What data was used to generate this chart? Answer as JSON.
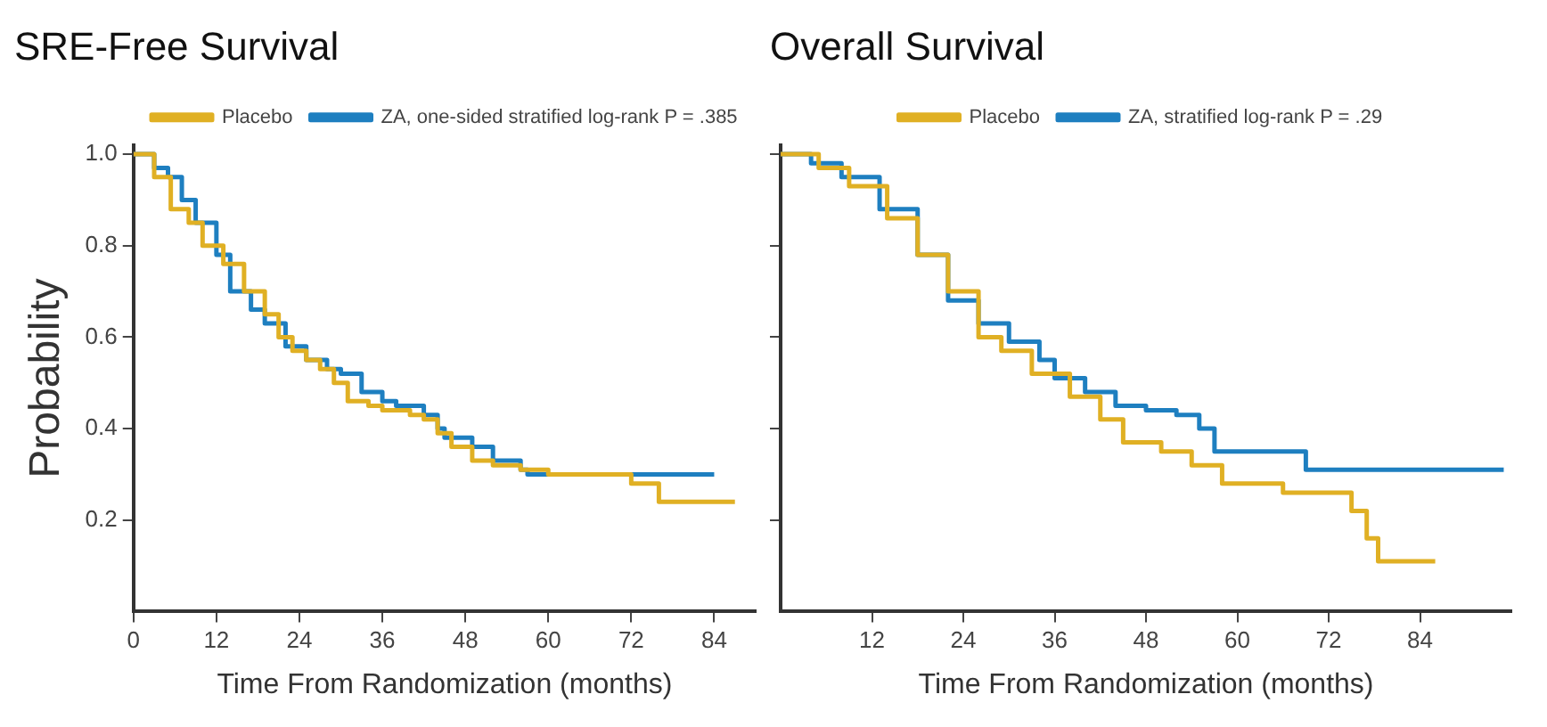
{
  "chart_data": [
    {
      "type": "step",
      "title": "SRE-Free Survival",
      "xlabel": "Time From Randomization (months)",
      "ylabel": "Probability",
      "xlim": [
        0,
        90
      ],
      "xticks": [
        0,
        12,
        24,
        36,
        48,
        60,
        72,
        84
      ],
      "ylim": [
        0,
        1.02
      ],
      "yticks": [
        0.2,
        0.4,
        0.6,
        {
          "value": 0.8,
          "label": "0.8"
        },
        {
          "value": 1,
          "label": "1.0"
        }
      ],
      "grid": false,
      "legend": "top right",
      "series": [
        {
          "name": "Placebo",
          "color": "#e0b024",
          "x": [
            0,
            3,
            5.4,
            8,
            10,
            13,
            16,
            19,
            21,
            23,
            25,
            27,
            29,
            31,
            34,
            36,
            40,
            42,
            44,
            46,
            49,
            52,
            56,
            60,
            71,
            72,
            76,
            87
          ],
          "values": [
            1,
            0.95,
            0.88,
            0.85,
            0.8,
            0.76,
            0.7,
            0.65,
            0.6,
            0.57,
            0.55,
            0.53,
            0.5,
            0.46,
            0.45,
            0.44,
            0.43,
            0.42,
            0.39,
            0.36,
            0.33,
            0.32,
            0.31,
            0.3,
            0.3,
            0.28,
            0.24,
            0.24
          ]
        },
        {
          "name": "ZA, one-sided stratified log-rank P = .385",
          "color": "#1e7fc0",
          "x": [
            0,
            3,
            5,
            7,
            9,
            12,
            14,
            17,
            19,
            22,
            25,
            28,
            30,
            33,
            36,
            38,
            42,
            44,
            45,
            49,
            52,
            56,
            57,
            84
          ],
          "values": [
            1,
            0.97,
            0.95,
            0.9,
            0.85,
            0.78,
            0.7,
            0.66,
            0.63,
            0.58,
            0.55,
            0.53,
            0.52,
            0.48,
            0.46,
            0.45,
            0.43,
            0.4,
            0.38,
            0.36,
            0.33,
            0.31,
            0.3,
            0.3
          ]
        }
      ]
    },
    {
      "type": "step",
      "title": "Overall Survival",
      "xlabel": "Time From Randomization (months)",
      "xlim": [
        0,
        96
      ],
      "xticks": [
        12,
        24,
        36,
        48,
        60,
        72,
        84
      ],
      "ylim": [
        0,
        1.02
      ],
      "yticks": [
        {
          "value": 0.2,
          "label": null
        },
        {
          "value": 0.4,
          "label": null
        },
        {
          "value": 0.6,
          "label": null
        },
        {
          "value": 0.8,
          "label": null
        },
        {
          "value": 1,
          "label": null
        }
      ],
      "tick_labels": "x",
      "grid": false,
      "legend": "top",
      "series": [
        {
          "name": "Placebo",
          "color": "#e0b024",
          "x": [
            0,
            5,
            9,
            14,
            18,
            22,
            26,
            29,
            33,
            38,
            42,
            45,
            50,
            54,
            58,
            62,
            66,
            73,
            75,
            77,
            78.5,
            86
          ],
          "values": [
            1,
            0.97,
            0.93,
            0.86,
            0.78,
            0.7,
            0.6,
            0.57,
            0.52,
            0.47,
            0.42,
            0.37,
            0.35,
            0.32,
            0.28,
            0.28,
            0.26,
            0.26,
            0.22,
            0.16,
            0.11,
            0.11
          ]
        },
        {
          "name": "ZA, stratified log-rank P = .29",
          "color": "#1e7fc0",
          "x": [
            0,
            4,
            8,
            13,
            18,
            22,
            26,
            30,
            34,
            36,
            40,
            44,
            48,
            52,
            55,
            57,
            68,
            69,
            95
          ],
          "values": [
            1,
            0.98,
            0.95,
            0.88,
            0.78,
            0.68,
            0.63,
            0.59,
            0.55,
            0.51,
            0.48,
            0.45,
            0.44,
            0.43,
            0.4,
            0.35,
            0.35,
            0.31,
            0.31
          ]
        }
      ]
    }
  ]
}
